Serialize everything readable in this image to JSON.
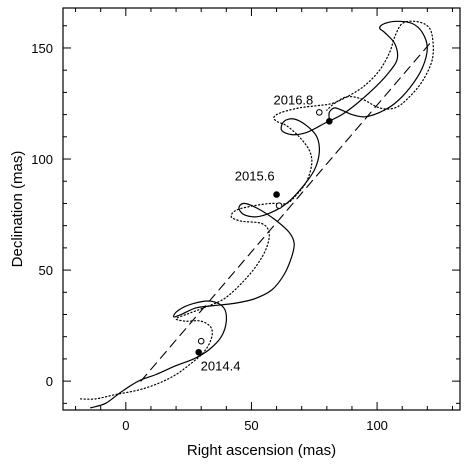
{
  "chart_data": {
    "type": "line",
    "xlabel": "Right ascension (mas)",
    "ylabel": "Declination (mas)",
    "xlim": [
      -25,
      133
    ],
    "ylim": [
      -13,
      168
    ],
    "xticks": [
      0,
      50,
      100
    ],
    "yticks": [
      0,
      50,
      100,
      150
    ],
    "grid": false,
    "series": [
      {
        "style": "solid",
        "points": [
          [
            -14,
            -12
          ],
          [
            -8,
            -10
          ],
          [
            -2,
            -5
          ],
          [
            5,
            0
          ],
          [
            12,
            3
          ],
          [
            20,
            7
          ],
          [
            27,
            10
          ],
          [
            33,
            14
          ],
          [
            38,
            20
          ],
          [
            40,
            27
          ],
          [
            39,
            33
          ],
          [
            34,
            36
          ],
          [
            27,
            35
          ],
          [
            21,
            32
          ],
          [
            19,
            29
          ],
          [
            22,
            30
          ],
          [
            28,
            33
          ],
          [
            35,
            34
          ],
          [
            43,
            35
          ],
          [
            51,
            37
          ],
          [
            58,
            41
          ],
          [
            63,
            48
          ],
          [
            66,
            56
          ],
          [
            67,
            62
          ],
          [
            65,
            67
          ],
          [
            59,
            73
          ],
          [
            52,
            78
          ],
          [
            47,
            80
          ],
          [
            45,
            78
          ],
          [
            47,
            75
          ],
          [
            52,
            74
          ],
          [
            58,
            76
          ],
          [
            64,
            80
          ],
          [
            70,
            87
          ],
          [
            75,
            95
          ],
          [
            77,
            103
          ],
          [
            76,
            110
          ],
          [
            72,
            115
          ],
          [
            67,
            118
          ],
          [
            63,
            117
          ],
          [
            62,
            113
          ],
          [
            66,
            111
          ],
          [
            72,
            112
          ],
          [
            79,
            116
          ],
          [
            86,
            120
          ],
          [
            92,
            125
          ],
          [
            98,
            131
          ],
          [
            104,
            138
          ],
          [
            108,
            145
          ],
          [
            107,
            152
          ],
          [
            103,
            157
          ],
          [
            101,
            159
          ],
          [
            103,
            161
          ],
          [
            108,
            162
          ],
          [
            114,
            161
          ],
          [
            118,
            157
          ],
          [
            120,
            150
          ],
          [
            118,
            141
          ],
          [
            113,
            132
          ],
          [
            107,
            125
          ],
          [
            101,
            121
          ],
          [
            95,
            119
          ],
          [
            90,
            120
          ],
          [
            86,
            122
          ],
          [
            83,
            123
          ],
          [
            81,
            121
          ],
          [
            81,
            118
          ]
        ]
      },
      {
        "style": "dotted",
        "points": [
          [
            -18,
            -8
          ],
          [
            -12,
            -8
          ],
          [
            -4,
            -6
          ],
          [
            5,
            -4
          ],
          [
            13,
            -1
          ],
          [
            20,
            3
          ],
          [
            26,
            8
          ],
          [
            31,
            13
          ],
          [
            34,
            19
          ],
          [
            34,
            24
          ],
          [
            30,
            27
          ],
          [
            24,
            27
          ],
          [
            20,
            28
          ],
          [
            24,
            30
          ],
          [
            31,
            33
          ],
          [
            39,
            37
          ],
          [
            46,
            44
          ],
          [
            52,
            52
          ],
          [
            56,
            60
          ],
          [
            57,
            67
          ],
          [
            54,
            71
          ],
          [
            46,
            72
          ],
          [
            42,
            74
          ],
          [
            44,
            77
          ],
          [
            51,
            79
          ],
          [
            58,
            80
          ],
          [
            64,
            80
          ],
          [
            68,
            84
          ],
          [
            72,
            90
          ],
          [
            74,
            98
          ],
          [
            73,
            104
          ],
          [
            69,
            110
          ],
          [
            64,
            115
          ],
          [
            60,
            117
          ],
          [
            59,
            119
          ],
          [
            62,
            121
          ],
          [
            69,
            123
          ],
          [
            76,
            124
          ],
          [
            82,
            125
          ],
          [
            88,
            128
          ],
          [
            95,
            133
          ],
          [
            101,
            140
          ],
          [
            105,
            148
          ],
          [
            107,
            155
          ],
          [
            110,
            161
          ],
          [
            115,
            162
          ],
          [
            120,
            160
          ],
          [
            122,
            155
          ],
          [
            122,
            145
          ],
          [
            118,
            135
          ],
          [
            112,
            127
          ],
          [
            107,
            123
          ],
          [
            101,
            123
          ],
          [
            94,
            127
          ],
          [
            88,
            128
          ],
          [
            83,
            125
          ],
          [
            80,
            122
          ]
        ]
      },
      {
        "style": "dashed",
        "points": [
          [
            6,
            0
          ],
          [
            121,
            152
          ]
        ]
      }
    ],
    "markers": [
      {
        "filled": true,
        "x": 29,
        "y": 13
      },
      {
        "filled": false,
        "x": 30,
        "y": 18
      },
      {
        "filled": true,
        "x": 60,
        "y": 84
      },
      {
        "filled": false,
        "x": 61,
        "y": 79
      },
      {
        "filled": true,
        "x": 81,
        "y": 117
      },
      {
        "filled": false,
        "x": 77,
        "y": 121
      }
    ],
    "annotations": [
      {
        "text": "2014.4",
        "x": 29,
        "y": 13
      },
      {
        "text": "2015.6",
        "x": 60,
        "y": 84
      },
      {
        "text": "2016.8",
        "x": 77,
        "y": 121
      }
    ]
  }
}
